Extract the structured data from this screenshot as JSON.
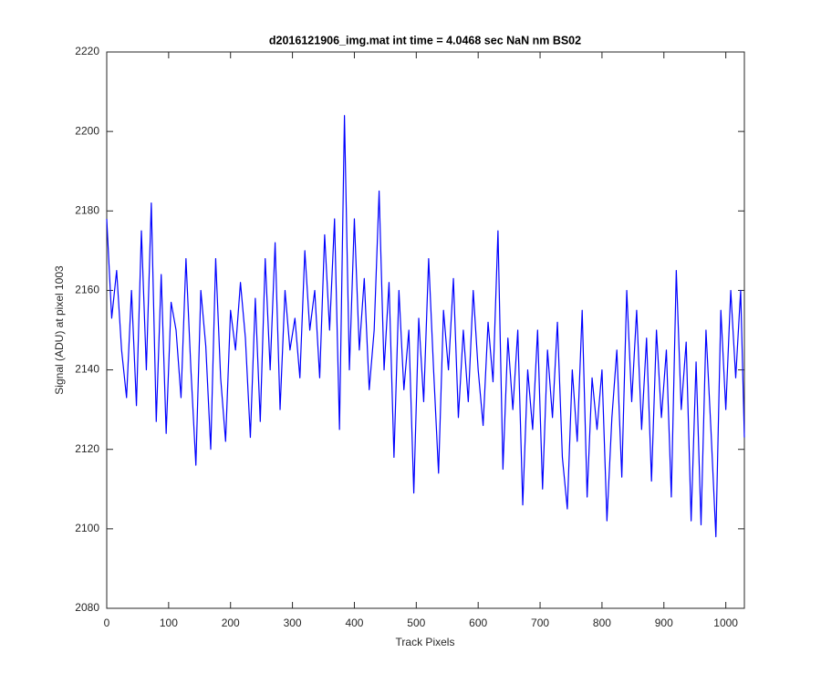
{
  "chart_data": {
    "type": "line",
    "title": "d2016121906_img.mat int time = 4.0468 sec  NaN nm BS02",
    "x_label": "Track Pixels",
    "y_label": "Signal (ADU) at pixel 1003",
    "xlim": [
      0,
      1030
    ],
    "ylim": [
      2080,
      2220
    ],
    "xticks": [
      0,
      100,
      200,
      300,
      400,
      500,
      600,
      700,
      800,
      900,
      1000
    ],
    "yticks": [
      2080,
      2100,
      2120,
      2140,
      2160,
      2180,
      2200,
      2220
    ],
    "grid": false,
    "series": [
      {
        "color": "#0000ff",
        "x": [
          0,
          8,
          16,
          24,
          32,
          40,
          48,
          56,
          64,
          72,
          80,
          88,
          96,
          104,
          112,
          120,
          128,
          136,
          144,
          152,
          160,
          168,
          176,
          184,
          192,
          200,
          208,
          216,
          224,
          232,
          240,
          248,
          256,
          264,
          272,
          280,
          288,
          296,
          304,
          312,
          320,
          328,
          336,
          344,
          352,
          360,
          368,
          376,
          384,
          392,
          400,
          408,
          416,
          424,
          432,
          440,
          448,
          456,
          464,
          472,
          480,
          488,
          496,
          504,
          512,
          520,
          528,
          536,
          544,
          552,
          560,
          568,
          576,
          584,
          592,
          600,
          608,
          616,
          624,
          632,
          640,
          648,
          656,
          664,
          672,
          680,
          688,
          696,
          704,
          712,
          720,
          728,
          736,
          744,
          752,
          760,
          768,
          776,
          784,
          792,
          800,
          808,
          816,
          824,
          832,
          840,
          848,
          856,
          864,
          872,
          880,
          888,
          896,
          904,
          912,
          920,
          928,
          936,
          944,
          952,
          960,
          968,
          976,
          984,
          992,
          1000,
          1008,
          1016,
          1024,
          1030
        ],
        "values": [
          2178,
          2153,
          2165,
          2145,
          2133,
          2160,
          2131,
          2175,
          2140,
          2182,
          2127,
          2164,
          2124,
          2157,
          2150,
          2133,
          2168,
          2140,
          2116,
          2160,
          2146,
          2120,
          2168,
          2138,
          2122,
          2155,
          2145,
          2162,
          2148,
          2123,
          2158,
          2127,
          2168,
          2140,
          2172,
          2130,
          2160,
          2145,
          2153,
          2138,
          2170,
          2150,
          2160,
          2138,
          2174,
          2150,
          2178,
          2125,
          2204,
          2140,
          2178,
          2145,
          2163,
          2135,
          2150,
          2185,
          2140,
          2162,
          2118,
          2160,
          2135,
          2150,
          2109,
          2153,
          2132,
          2168,
          2140,
          2114,
          2155,
          2140,
          2163,
          2128,
          2150,
          2132,
          2160,
          2140,
          2126,
          2152,
          2137,
          2175,
          2115,
          2148,
          2130,
          2150,
          2106,
          2140,
          2125,
          2150,
          2110,
          2145,
          2128,
          2152,
          2118,
          2105,
          2140,
          2122,
          2155,
          2108,
          2138,
          2125,
          2140,
          2102,
          2128,
          2145,
          2113,
          2160,
          2132,
          2155,
          2125,
          2148,
          2112,
          2150,
          2128,
          2145,
          2108,
          2165,
          2130,
          2147,
          2102,
          2142,
          2101,
          2150,
          2125,
          2098,
          2155,
          2130,
          2160,
          2138,
          2160,
          2123
        ]
      }
    ]
  }
}
